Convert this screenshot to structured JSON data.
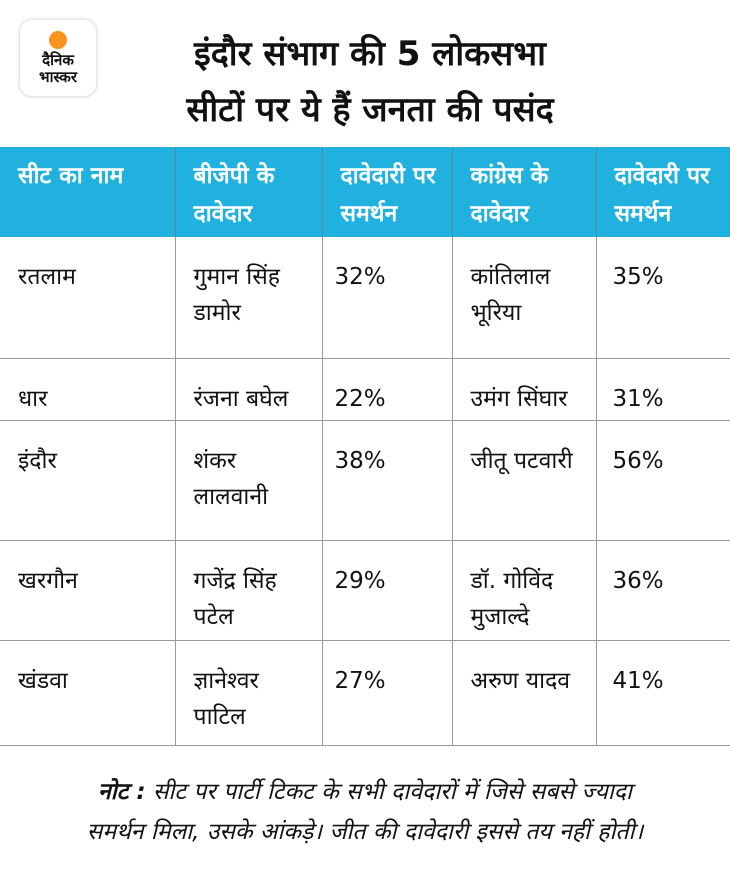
{
  "logo": {
    "line1": "दैनिक",
    "line2": "भास्कर",
    "sun_color": "#f7941d"
  },
  "title": {
    "line1": "इंदौर संभाग की 5 लोकसभा",
    "line2": "सीटों पर ये हैं जनता की पसंद"
  },
  "colors": {
    "header_bg": "#21b1df"
  },
  "table": {
    "headers": [
      "सीट का नाम",
      "बीजेपी के दावेदार",
      "दावेदारी पर समर्थन",
      "कांग्रेस के दावेदार",
      "दावेदारी पर समर्थन"
    ],
    "rows": [
      [
        "रतलाम",
        "गुमान सिंह डामोर",
        "32%",
        "कांतिलाल भूरिया",
        "35%"
      ],
      [
        "धार",
        "रंजना बघेल",
        "22%",
        "उमंग सिंघार",
        "31%"
      ],
      [
        "इंदौर",
        "शंकर लालवानी",
        "38%",
        "जीतू पटवारी",
        "56%"
      ],
      [
        "खरगौन",
        "गजेंद्र सिंह पटेल",
        "29%",
        "डॉ. गोविंद मुजाल्दे",
        "36%"
      ],
      [
        "खंडवा",
        "ज्ञानेश्वर पाटिल",
        "27%",
        "अरुण यादव",
        "41%"
      ]
    ]
  },
  "note": {
    "label": "नोट :",
    "line1": " सीट पर पार्टी टिकट के सभी दावेदारों में जिसे सबसे ज्यादा",
    "line2": "समर्थन मिला, उसके आंकड़े। जीत की दावेदारी इससे तय नहीं होती।"
  }
}
